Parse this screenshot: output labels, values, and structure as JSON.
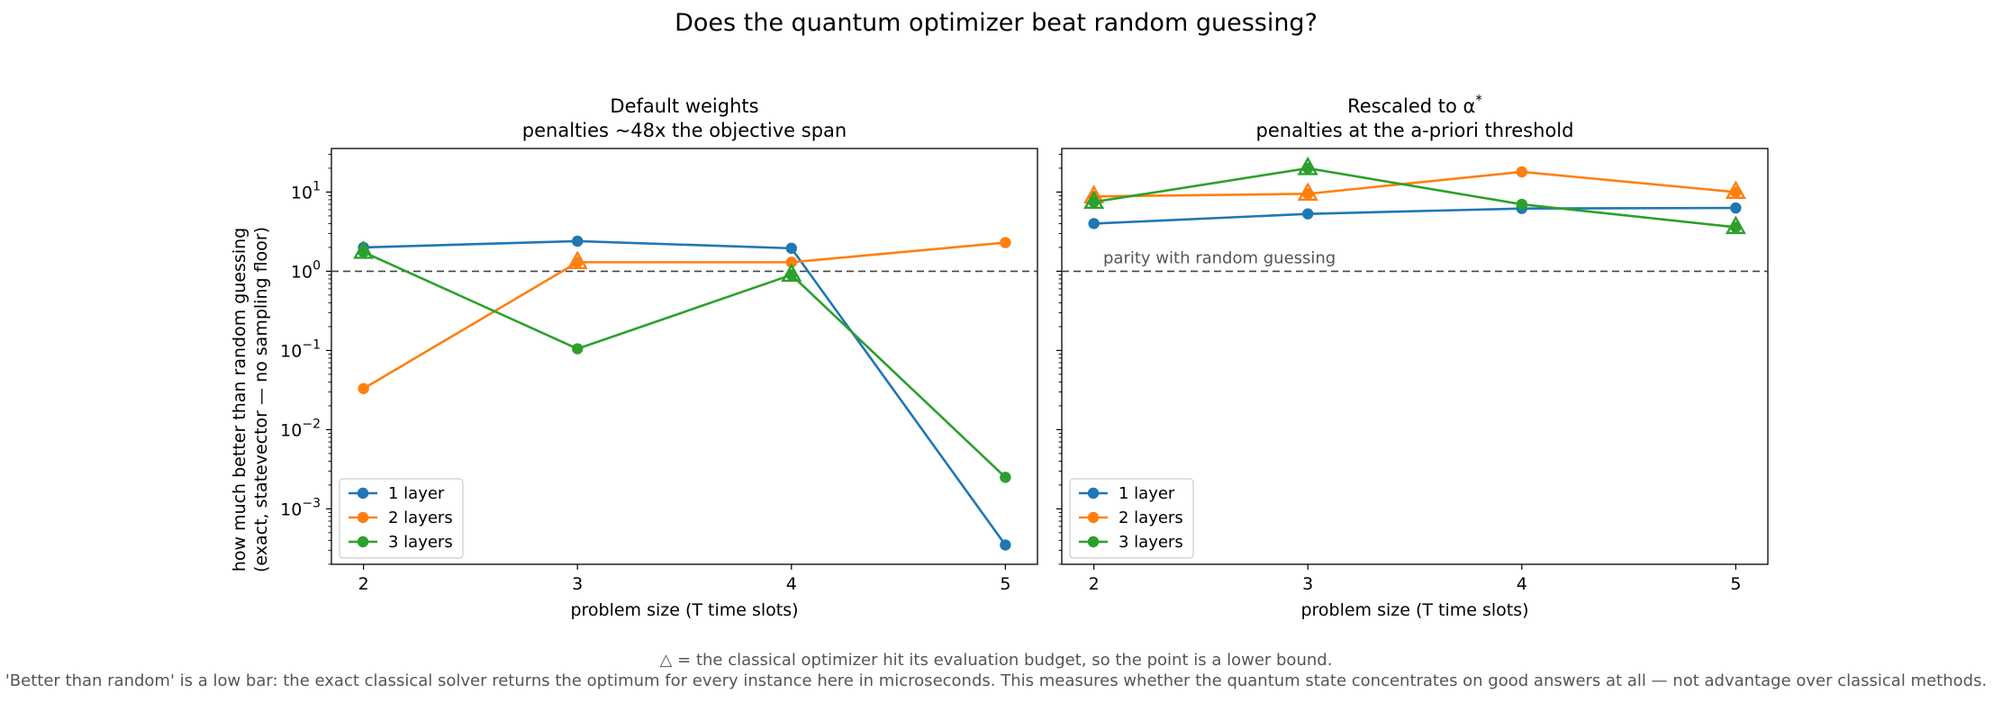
{
  "title": "Does the quantum optimizer beat random guessing?",
  "footer_lines": [
    "△ = the classical optimizer hit its evaluation budget, so the point is a lower bound.",
    "'Better than random' is a low bar: the exact classical solver returns the optimum for every instance here in microseconds. This measures whether the quantum state concentrates on good answers at all — not advantage over classical methods."
  ],
  "colors": {
    "1 layer": "#1f77b4",
    "2 layers": "#ff7f0e",
    "3 layers": "#2ca02c",
    "parity_line": "#444444"
  },
  "chart_data": [
    {
      "type": "line",
      "title_lines": [
        "Default weights",
        "penalties ~48x the objective span"
      ],
      "xlabel": "problem size (T time slots)",
      "ylabel_lines": [
        "how much better than random guessing",
        "(exact, statevector — no sampling floor)"
      ],
      "x": [
        2,
        3,
        4,
        5
      ],
      "xticks": [
        "2",
        "3",
        "4",
        "5"
      ],
      "yscale": "log",
      "yticks": [
        {
          "base": "10",
          "exp": "1"
        },
        {
          "base": "10",
          "exp": "0"
        },
        {
          "base": "10",
          "exp": "−1"
        },
        {
          "base": "10",
          "exp": "−2"
        },
        {
          "base": "10",
          "exp": "−3"
        }
      ],
      "reference_line": {
        "y": 1,
        "style": "dashed",
        "label": ""
      },
      "legend_placement": "lower-left",
      "series": [
        {
          "name": "1 layer",
          "values": [
            2.0,
            2.4,
            1.95,
            0.00035
          ],
          "lower_bound": [
            false,
            false,
            false,
            false
          ]
        },
        {
          "name": "2 layers",
          "values": [
            0.033,
            1.3,
            1.3,
            2.3
          ],
          "lower_bound": [
            false,
            true,
            false,
            false
          ]
        },
        {
          "name": "3 layers",
          "values": [
            1.75,
            0.105,
            0.9,
            0.0025
          ],
          "lower_bound": [
            true,
            false,
            true,
            false
          ]
        }
      ]
    },
    {
      "type": "line",
      "title_lines": [
        "Rescaled to α",
        "penalties at the a-priori threshold"
      ],
      "title_superscript": "*",
      "xlabel": "problem size (T time slots)",
      "x": [
        2,
        3,
        4,
        5
      ],
      "xticks": [
        "2",
        "3",
        "4",
        "5"
      ],
      "yscale": "log",
      "yshared": true,
      "reference_line": {
        "y": 1,
        "style": "dashed",
        "label": "parity with random guessing"
      },
      "legend_placement": "lower-left",
      "series": [
        {
          "name": "1 layer",
          "values": [
            4.0,
            5.3,
            6.2,
            6.3
          ],
          "lower_bound": [
            false,
            false,
            false,
            false
          ]
        },
        {
          "name": "2 layers",
          "values": [
            8.8,
            9.5,
            18.0,
            10.0
          ],
          "lower_bound": [
            true,
            true,
            false,
            true
          ]
        },
        {
          "name": "3 layers",
          "values": [
            7.5,
            20.0,
            7.0,
            3.6
          ],
          "lower_bound": [
            true,
            true,
            false,
            true
          ]
        }
      ]
    }
  ]
}
